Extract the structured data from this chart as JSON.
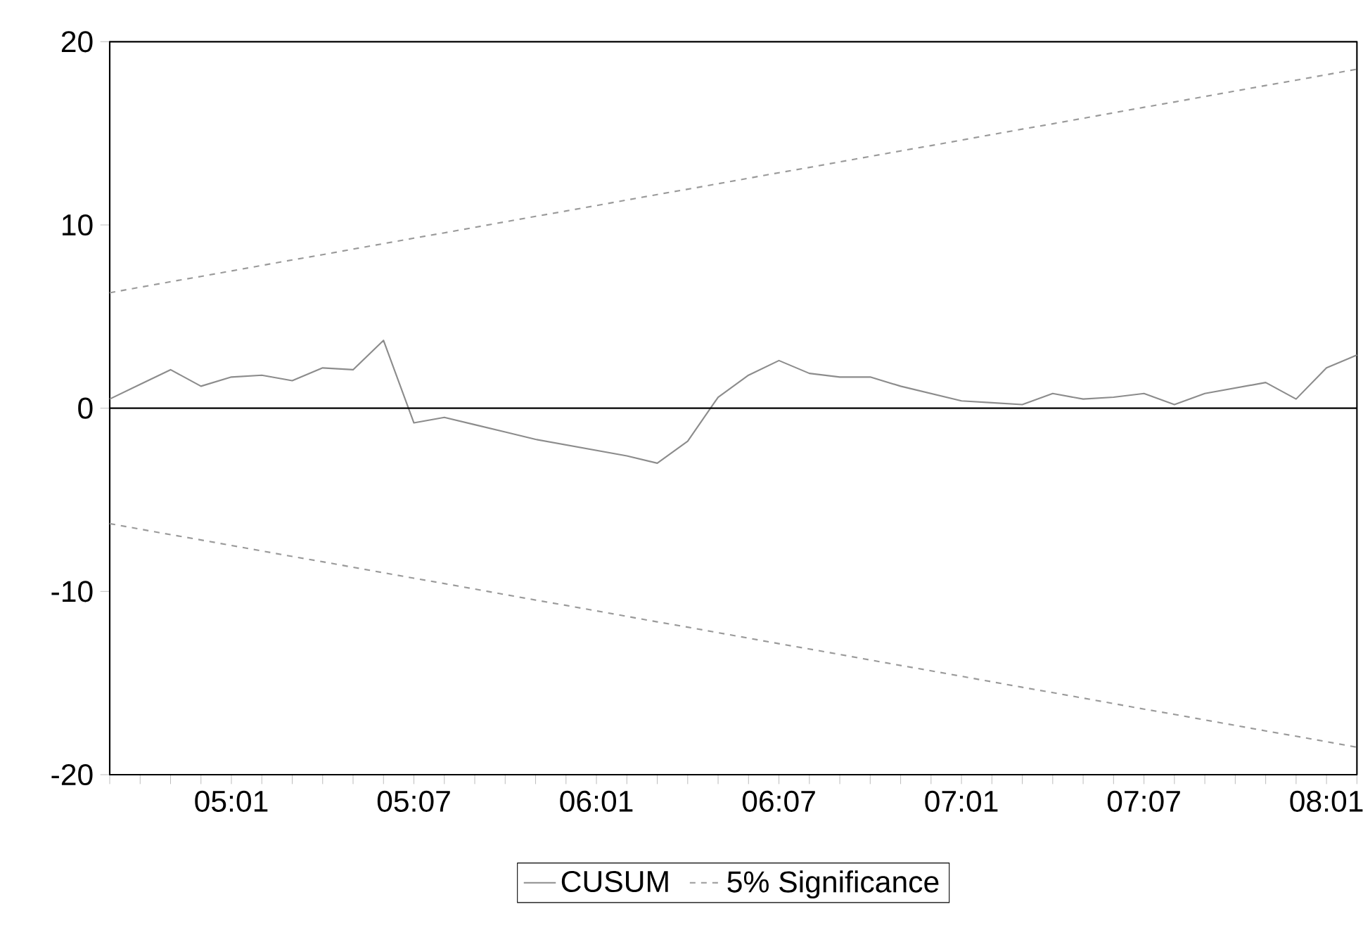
{
  "chart_data": {
    "type": "line",
    "categories": [
      null,
      null,
      null,
      null,
      "05:01",
      null,
      null,
      null,
      null,
      null,
      "05:07",
      null,
      null,
      null,
      null,
      null,
      "06:01",
      null,
      null,
      null,
      null,
      null,
      "06:07",
      null,
      null,
      null,
      null,
      null,
      "07:01",
      null,
      null,
      null,
      null,
      null,
      "07:07",
      null,
      null,
      null,
      null,
      null,
      "08:01",
      null
    ],
    "series": [
      {
        "name": "CUSUM",
        "color": "#8c8c8c",
        "line_style": "solid",
        "values": [
          0.5,
          1.3,
          2.1,
          1.2,
          1.7,
          1.8,
          1.5,
          2.2,
          2.1,
          3.7,
          -0.8,
          -0.5,
          -0.9,
          -1.3,
          -1.7,
          -2.0,
          -2.3,
          -2.6,
          -3.0,
          -1.8,
          0.6,
          1.8,
          2.6,
          1.9,
          1.7,
          1.7,
          1.2,
          0.8,
          0.4,
          0.3,
          0.2,
          0.8,
          0.5,
          0.6,
          0.8,
          0.2,
          0.8,
          1.1,
          1.4,
          0.5,
          2.2,
          2.9
        ]
      },
      {
        "name": "5% Significance",
        "color": "#9a9a9a",
        "line_style": "dashed",
        "values": [
          6.3,
          6.6,
          6.9,
          7.19,
          7.49,
          7.79,
          8.09,
          8.38,
          8.68,
          8.98,
          9.28,
          9.57,
          9.87,
          10.17,
          10.47,
          10.76,
          11.06,
          11.36,
          11.66,
          11.95,
          12.25,
          12.55,
          12.85,
          13.14,
          13.44,
          13.74,
          14.04,
          14.33,
          14.63,
          14.93,
          15.23,
          15.52,
          15.82,
          16.12,
          16.42,
          16.71,
          17.01,
          17.31,
          17.61,
          17.9,
          18.2,
          18.5
        ]
      },
      {
        "color": "#9a9a9a",
        "line_style": "dashed",
        "values": [
          -6.3,
          -6.6,
          -6.9,
          -7.19,
          -7.49,
          -7.79,
          -8.09,
          -8.38,
          -8.68,
          -8.98,
          -9.28,
          -9.57,
          -9.87,
          -10.17,
          -10.47,
          -10.76,
          -11.06,
          -11.36,
          -11.66,
          -11.95,
          -12.25,
          -12.55,
          -12.85,
          -13.14,
          -13.44,
          -13.74,
          -14.04,
          -14.33,
          -14.63,
          -14.93,
          -15.23,
          -15.52,
          -15.82,
          -16.12,
          -16.42,
          -16.71,
          -17.01,
          -17.31,
          -17.61,
          -17.9,
          -18.2,
          -18.5
        ]
      }
    ],
    "ylim": [
      -20,
      20
    ],
    "yticks": [
      -20,
      -10,
      0,
      10,
      20
    ],
    "ref_lines": [
      {
        "axis": "y",
        "value": 0,
        "color": "#000000"
      }
    ],
    "legend": "bottom",
    "grid": false,
    "marker": "none"
  }
}
